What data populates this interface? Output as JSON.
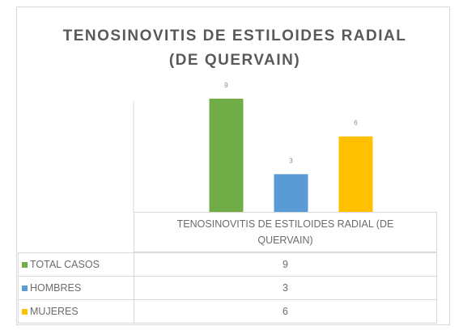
{
  "chart_data": {
    "type": "bar",
    "title": "TENOSINOVITIS DE ESTILOIDES RADIAL (DE QUERVAIN)",
    "categories": [
      "TENOSINOVITIS DE ESTILOIDES RADIAL (DE QUERVAIN)"
    ],
    "series": [
      {
        "name": "TOTAL CASOS",
        "color": "#70ad47",
        "values": [
          9
        ]
      },
      {
        "name": "HOMBRES",
        "color": "#5b9bd5",
        "values": [
          3
        ]
      },
      {
        "name": "MUJERES",
        "color": "#ffc000",
        "values": [
          6
        ]
      }
    ]
  }
}
